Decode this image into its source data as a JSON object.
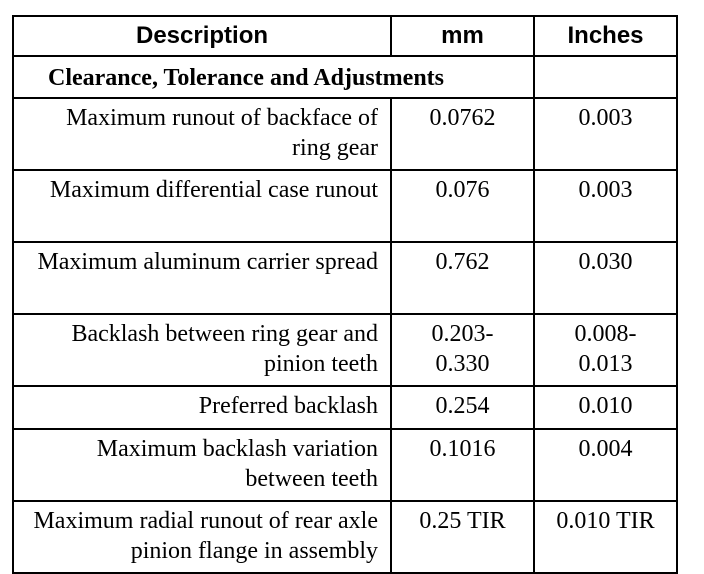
{
  "table": {
    "header": [
      "Description",
      "mm",
      "Inches"
    ],
    "section": "Clearance, Tolerance and Adjustments",
    "rows": [
      [
        "Maximum runout of backface of ring gear",
        "0.0762",
        "0.003"
      ],
      [
        "Maximum differential case runout",
        "0.076",
        "0.003"
      ],
      [
        "Maximum aluminum carrier spread",
        "0.762",
        "0.030"
      ],
      [
        "Backlash between ring gear and pinion teeth",
        "0.203-0.330",
        "0.008-0.013"
      ],
      [
        "Preferred backlash",
        "0.254",
        "0.010"
      ],
      [
        "Maximum backlash variation between teeth",
        "0.1016",
        "0.004"
      ],
      [
        "Maximum radial runout of rear axle pinion flange in assembly",
        "0.25 TIR",
        "0.010 TIR"
      ]
    ]
  }
}
